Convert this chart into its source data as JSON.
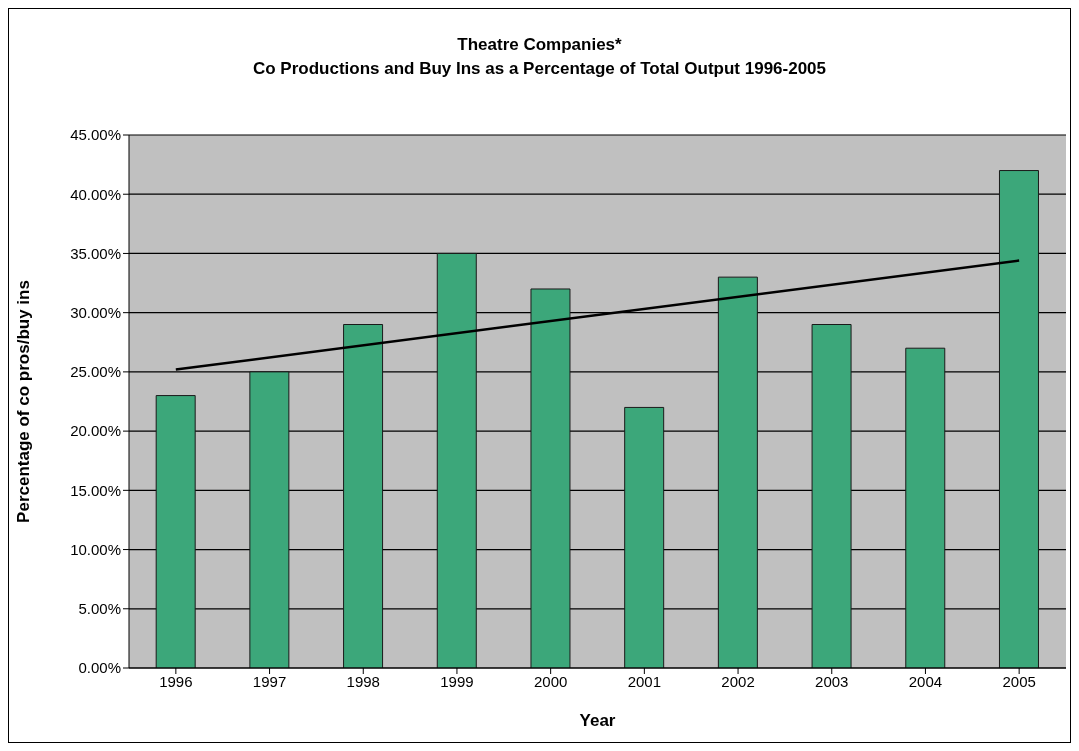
{
  "chart_data": {
    "type": "bar",
    "title": "Theatre Companies*",
    "subtitle": "Co Productions and Buy Ins as a Percentage of Total Output 1996-2005",
    "xlabel": "Year",
    "ylabel": "Percentage of co pros/buy ins",
    "categories": [
      "1996",
      "1997",
      "1998",
      "1999",
      "2000",
      "2001",
      "2002",
      "2003",
      "2004",
      "2005"
    ],
    "series": [
      {
        "color": "#3ca77a",
        "values": [
          23,
          25,
          29,
          35,
          32,
          22,
          33,
          29,
          27,
          42
        ]
      },
      {
        "type": "line",
        "color": "#000000",
        "values": [
          25.2,
          null,
          null,
          null,
          null,
          null,
          null,
          null,
          null,
          34.4
        ]
      }
    ],
    "ylim": [
      0,
      45
    ],
    "yticks": [
      {
        "value": 0,
        "label": "0.00%"
      },
      {
        "value": 5,
        "label": "5.00%"
      },
      {
        "value": 10,
        "label": "10.00%"
      },
      {
        "value": 15,
        "label": "15.00%"
      },
      {
        "value": 20,
        "label": "20.00%"
      },
      {
        "value": 25,
        "label": "25.00%"
      },
      {
        "value": 30,
        "label": "30.00%"
      },
      {
        "value": 35,
        "label": "35.00%"
      },
      {
        "value": 40,
        "label": "40.00%"
      },
      {
        "value": 45,
        "label": "45.00%"
      }
    ],
    "grid": "y",
    "legend": false,
    "marker": "none",
    "line_style": "solid"
  }
}
